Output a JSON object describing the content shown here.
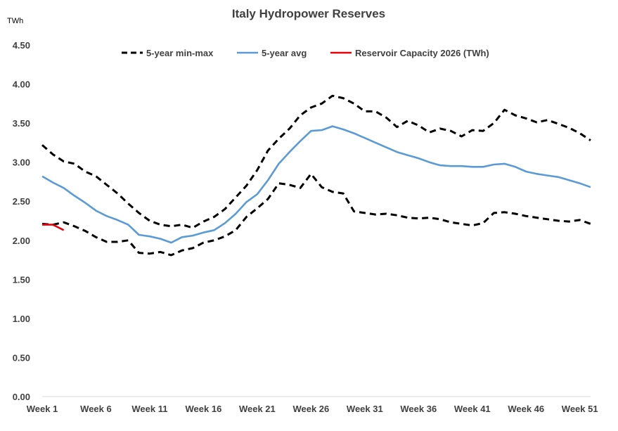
{
  "chart_data": {
    "type": "line",
    "title": "Italy Hydropower Reserves",
    "ylabel": "TWh",
    "xlabel": "",
    "ylim": [
      0,
      4.5
    ],
    "y_ticks": [
      "0.00",
      "0.50",
      "1.00",
      "1.50",
      "2.00",
      "2.50",
      "3.00",
      "3.50",
      "4.00",
      "4.50"
    ],
    "y_tick_values": [
      0,
      0.5,
      1.0,
      1.5,
      2.0,
      2.5,
      3.0,
      3.5,
      4.0,
      4.5
    ],
    "weeks": [
      1,
      2,
      3,
      4,
      5,
      6,
      7,
      8,
      9,
      10,
      11,
      12,
      13,
      14,
      15,
      16,
      17,
      18,
      19,
      20,
      21,
      22,
      23,
      24,
      25,
      26,
      27,
      28,
      29,
      30,
      31,
      32,
      33,
      34,
      35,
      36,
      37,
      38,
      39,
      40,
      41,
      42,
      43,
      44,
      45,
      46,
      47,
      48,
      49,
      50,
      51,
      52
    ],
    "x_tick_labels": [
      "Week 1",
      "Week 6",
      "Week 11",
      "Week 16",
      "Week 21",
      "Week 26",
      "Week 31",
      "Week 36",
      "Week 41",
      "Week 46",
      "Week 51"
    ],
    "x_tick_weeks": [
      1,
      6,
      11,
      16,
      21,
      26,
      31,
      36,
      41,
      46,
      51
    ],
    "legend": {
      "position": "top",
      "entries": [
        {
          "label": "5-year min-max",
          "color": "#000000",
          "style": "dashed"
        },
        {
          "label": "5-year avg",
          "color": "#5B9BD5",
          "style": "solid"
        },
        {
          "label": "Reservoir Capacity 2026 (TWh)",
          "color": "#E8000B",
          "style": "solid"
        }
      ]
    },
    "series": [
      {
        "name": "5-year max",
        "legend_entry": 0,
        "color": "#000000",
        "style": "dashed",
        "values": [
          3.22,
          3.1,
          3.01,
          2.98,
          2.88,
          2.82,
          2.71,
          2.6,
          2.47,
          2.35,
          2.25,
          2.2,
          2.18,
          2.2,
          2.16,
          2.24,
          2.3,
          2.4,
          2.55,
          2.7,
          2.9,
          3.15,
          3.3,
          3.43,
          3.6,
          3.7,
          3.75,
          3.85,
          3.82,
          3.75,
          3.65,
          3.65,
          3.57,
          3.45,
          3.53,
          3.47,
          3.38,
          3.43,
          3.4,
          3.33,
          3.41,
          3.4,
          3.5,
          3.67,
          3.6,
          3.56,
          3.51,
          3.54,
          3.49,
          3.44,
          3.37,
          3.28
        ]
      },
      {
        "name": "5-year min",
        "legend_entry": 0,
        "color": "#000000",
        "style": "dashed",
        "values": [
          2.21,
          2.2,
          2.23,
          2.18,
          2.12,
          2.04,
          1.98,
          1.98,
          2.0,
          1.84,
          1.83,
          1.85,
          1.81,
          1.87,
          1.9,
          1.97,
          2.0,
          2.05,
          2.13,
          2.3,
          2.41,
          2.53,
          2.73,
          2.71,
          2.67,
          2.85,
          2.68,
          2.62,
          2.6,
          2.37,
          2.35,
          2.33,
          2.34,
          2.32,
          2.29,
          2.28,
          2.29,
          2.27,
          2.23,
          2.21,
          2.19,
          2.22,
          2.35,
          2.36,
          2.34,
          2.31,
          2.29,
          2.27,
          2.25,
          2.24,
          2.26,
          2.21
        ]
      },
      {
        "name": "5-year avg",
        "legend_entry": 1,
        "color": "#5B9BD5",
        "style": "solid",
        "values": [
          2.82,
          2.74,
          2.67,
          2.57,
          2.48,
          2.38,
          2.31,
          2.26,
          2.2,
          2.07,
          2.05,
          2.02,
          1.97,
          2.04,
          2.06,
          2.1,
          2.13,
          2.22,
          2.34,
          2.49,
          2.59,
          2.77,
          2.98,
          3.13,
          3.27,
          3.4,
          3.41,
          3.46,
          3.42,
          3.37,
          3.31,
          3.25,
          3.19,
          3.13,
          3.09,
          3.05,
          3.0,
          2.96,
          2.95,
          2.95,
          2.94,
          2.94,
          2.97,
          2.98,
          2.94,
          2.88,
          2.85,
          2.83,
          2.81,
          2.77,
          2.73,
          2.68
        ]
      },
      {
        "name": "Reservoir Capacity 2026 (TWh)",
        "legend_entry": 2,
        "color": "#E8000B",
        "style": "solid",
        "values": [
          2.2,
          2.2,
          2.13
        ]
      }
    ]
  }
}
